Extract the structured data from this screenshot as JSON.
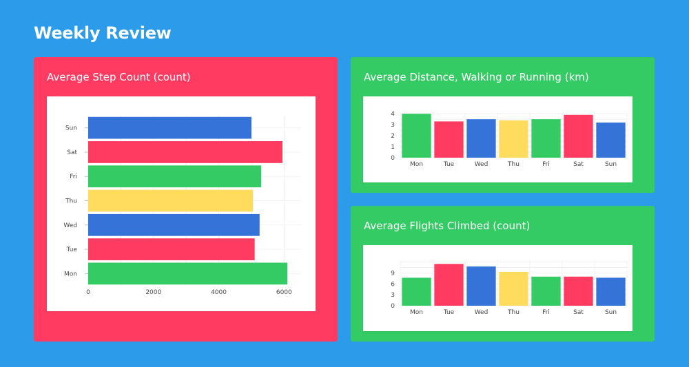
{
  "page": {
    "title": "Weekly Review"
  },
  "colors": {
    "background": "#2b9bea",
    "red": "#ff3b62",
    "green": "#34cb64",
    "blue": "#3673d9",
    "yellow": "#ffdb5e"
  },
  "panels": {
    "steps": {
      "title": "Average Step Count (count)"
    },
    "distance": {
      "title": "Average Distance, Walking or Running (km)"
    },
    "flights": {
      "title": "Average Flights Climbed (count)"
    }
  },
  "chart_data": [
    {
      "id": "steps",
      "type": "bar",
      "orientation": "horizontal",
      "title": "Average Step Count (count)",
      "categories": [
        "Mon",
        "Tue",
        "Wed",
        "Thu",
        "Fri",
        "Sat",
        "Sun"
      ],
      "values": [
        6100,
        5100,
        5250,
        5050,
        5300,
        5950,
        5000
      ],
      "bar_colors": [
        "#34cb64",
        "#ff3b62",
        "#3673d9",
        "#ffdb5e",
        "#34cb64",
        "#ff3b62",
        "#3673d9"
      ],
      "xlim": [
        0,
        6500
      ],
      "xticks": [
        0,
        2000,
        4000,
        6000
      ],
      "grid": true
    },
    {
      "id": "distance",
      "type": "bar",
      "orientation": "vertical",
      "title": "Average Distance, Walking or Running (km)",
      "categories": [
        "Mon",
        "Tue",
        "Wed",
        "Thu",
        "Fri",
        "Sat",
        "Sun"
      ],
      "values": [
        4.0,
        3.3,
        3.5,
        3.4,
        3.5,
        3.9,
        3.2
      ],
      "bar_colors": [
        "#34cb64",
        "#ff3b62",
        "#3673d9",
        "#ffdb5e",
        "#34cb64",
        "#ff3b62",
        "#3673d9"
      ],
      "ylim": [
        0,
        4.2
      ],
      "yticks": [
        0,
        1,
        2,
        3,
        4
      ],
      "grid": true
    },
    {
      "id": "flights",
      "type": "bar",
      "orientation": "vertical",
      "title": "Average Flights Climbed (count)",
      "categories": [
        "Mon",
        "Tue",
        "Wed",
        "Thu",
        "Fri",
        "Sat",
        "Sun"
      ],
      "values": [
        7.7,
        11.5,
        10.8,
        9.3,
        8.0,
        8.0,
        7.7
      ],
      "bar_colors": [
        "#34cb64",
        "#ff3b62",
        "#3673d9",
        "#ffdb5e",
        "#34cb64",
        "#ff3b62",
        "#3673d9"
      ],
      "ylim": [
        0,
        12.5
      ],
      "yticks": [
        0,
        3,
        6,
        9
      ],
      "grid": true
    }
  ]
}
